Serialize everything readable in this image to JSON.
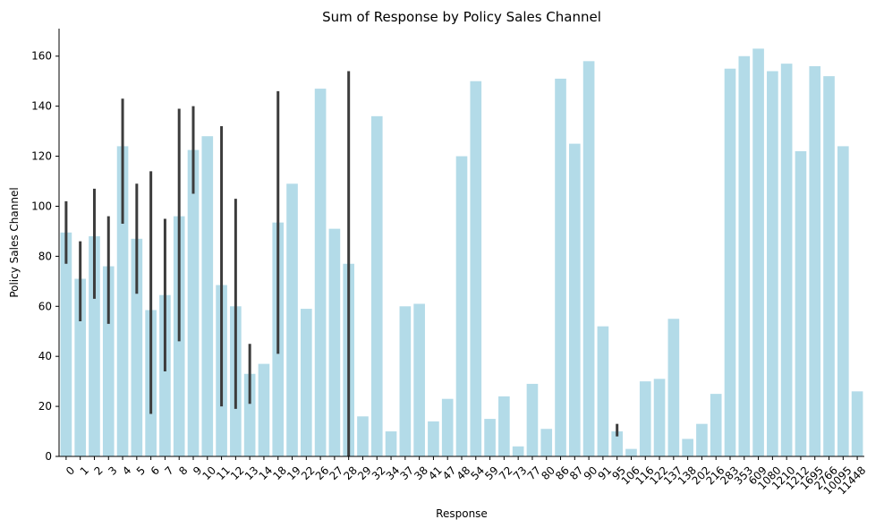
{
  "chart_data": {
    "type": "bar",
    "title": "Sum of Response by Policy Sales Channel",
    "xlabel": "Response",
    "ylabel": "Policy Sales Channel",
    "ylim": [
      0,
      171
    ],
    "yticks": [
      0,
      20,
      40,
      60,
      80,
      100,
      120,
      140,
      160
    ],
    "grid": false,
    "bar_color": "#add8e6",
    "errbar_color": "#3c3c3c",
    "categories": [
      "0",
      "1",
      "2",
      "3",
      "4",
      "5",
      "6",
      "7",
      "8",
      "9",
      "10",
      "11",
      "12",
      "13",
      "14",
      "18",
      "19",
      "22",
      "26",
      "27",
      "28",
      "29",
      "32",
      "34",
      "37",
      "38",
      "41",
      "47",
      "48",
      "54",
      "59",
      "72",
      "73",
      "77",
      "80",
      "86",
      "87",
      "90",
      "91",
      "95",
      "106",
      "116",
      "122",
      "137",
      "138",
      "202",
      "216",
      "283",
      "353",
      "609",
      "1080",
      "1210",
      "1212",
      "1695",
      "2766",
      "10095",
      "11448"
    ],
    "values": [
      89.5,
      71,
      88,
      76,
      124,
      87,
      58.5,
      64.5,
      96,
      122.5,
      128,
      68.5,
      60,
      33,
      37,
      93.5,
      109,
      59,
      147,
      91,
      77,
      16,
      136,
      10,
      60,
      61,
      14,
      23,
      120,
      150,
      15,
      24,
      4,
      29,
      11,
      151,
      125,
      158,
      52,
      10,
      3,
      30,
      31,
      55,
      7,
      13,
      25,
      155,
      160,
      163,
      154,
      157,
      122,
      156,
      152,
      124,
      26
    ],
    "error_bars": [
      {
        "category": "0",
        "low": 77,
        "high": 102
      },
      {
        "category": "1",
        "low": 54,
        "high": 86
      },
      {
        "category": "2",
        "low": 63,
        "high": 107
      },
      {
        "category": "3",
        "low": 53,
        "high": 96
      },
      {
        "category": "4",
        "low": 93,
        "high": 143
      },
      {
        "category": "5",
        "low": 65,
        "high": 109
      },
      {
        "category": "6",
        "low": 17,
        "high": 114
      },
      {
        "category": "7",
        "low": 34,
        "high": 95
      },
      {
        "category": "8",
        "low": 46,
        "high": 139
      },
      {
        "category": "9",
        "low": 105,
        "high": 140
      },
      {
        "category": "11",
        "low": 20,
        "high": 132
      },
      {
        "category": "12",
        "low": 19,
        "high": 103
      },
      {
        "category": "13",
        "low": 21,
        "high": 45
      },
      {
        "category": "18",
        "low": 41,
        "high": 146
      },
      {
        "category": "28",
        "low": 0,
        "high": 154
      },
      {
        "category": "95",
        "low": 8,
        "high": 13
      }
    ]
  }
}
